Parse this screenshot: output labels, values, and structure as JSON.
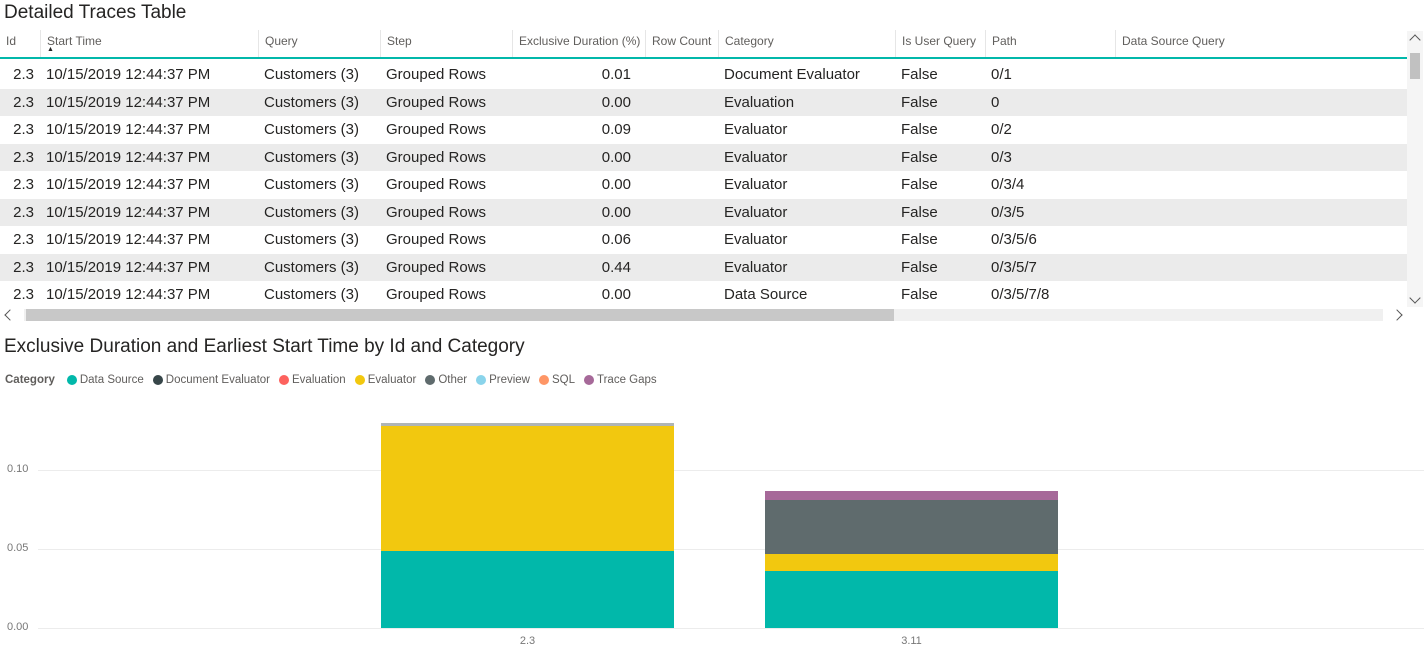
{
  "table": {
    "title": "Detailed Traces Table",
    "sorted_column": "Start Time",
    "sort_direction": "ascending",
    "columns": [
      "Id",
      "Start Time",
      "Query",
      "Step",
      "Exclusive Duration (%)",
      "Row Count",
      "Category",
      "Is User Query",
      "Path",
      "Data Source Query"
    ],
    "rows": [
      [
        "2.3",
        "10/15/2019 12:44:37 PM",
        "Customers (3)",
        "Grouped Rows",
        "0.01",
        "",
        "Document Evaluator",
        "False",
        "0/1",
        ""
      ],
      [
        "2.3",
        "10/15/2019 12:44:37 PM",
        "Customers (3)",
        "Grouped Rows",
        "0.00",
        "",
        "Evaluation",
        "False",
        "0",
        ""
      ],
      [
        "2.3",
        "10/15/2019 12:44:37 PM",
        "Customers (3)",
        "Grouped Rows",
        "0.09",
        "",
        "Evaluator",
        "False",
        "0/2",
        ""
      ],
      [
        "2.3",
        "10/15/2019 12:44:37 PM",
        "Customers (3)",
        "Grouped Rows",
        "0.00",
        "",
        "Evaluator",
        "False",
        "0/3",
        ""
      ],
      [
        "2.3",
        "10/15/2019 12:44:37 PM",
        "Customers (3)",
        "Grouped Rows",
        "0.00",
        "",
        "Evaluator",
        "False",
        "0/3/4",
        ""
      ],
      [
        "2.3",
        "10/15/2019 12:44:37 PM",
        "Customers (3)",
        "Grouped Rows",
        "0.00",
        "",
        "Evaluator",
        "False",
        "0/3/5",
        ""
      ],
      [
        "2.3",
        "10/15/2019 12:44:37 PM",
        "Customers (3)",
        "Grouped Rows",
        "0.06",
        "",
        "Evaluator",
        "False",
        "0/3/5/6",
        ""
      ],
      [
        "2.3",
        "10/15/2019 12:44:37 PM",
        "Customers (3)",
        "Grouped Rows",
        "0.44",
        "",
        "Evaluator",
        "False",
        "0/3/5/7",
        ""
      ],
      [
        "2.3",
        "10/15/2019 12:44:37 PM",
        "Customers (3)",
        "Grouped Rows",
        "0.00",
        "",
        "Data Source",
        "False",
        "0/3/5/7/8",
        ""
      ]
    ]
  },
  "chart": {
    "title": "Exclusive Duration and Earliest Start Time by Id and Category",
    "legend_title": "Category",
    "legend": [
      {
        "label": "Data Source",
        "color": "#01B8AA"
      },
      {
        "label": "Document Evaluator",
        "color": "#374649"
      },
      {
        "label": "Evaluation",
        "color": "#FD625E"
      },
      {
        "label": "Evaluator",
        "color": "#F2C80F"
      },
      {
        "label": "Other",
        "color": "#5F6B6D"
      },
      {
        "label": "Preview",
        "color": "#8AD4EB"
      },
      {
        "label": "SQL",
        "color": "#FE9666"
      },
      {
        "label": "Trace Gaps",
        "color": "#A66999"
      }
    ]
  },
  "chart_data": {
    "type": "bar",
    "stacked": true,
    "title": "Exclusive Duration and Earliest Start Time by Id and Category",
    "categories": [
      "2.3",
      "3.11"
    ],
    "series": [
      {
        "name": "Data Source",
        "color": "#01B8AA",
        "values": [
          0.049,
          0.036
        ]
      },
      {
        "name": "Evaluator",
        "color": "#F2C80F",
        "values": [
          0.079,
          0.011
        ]
      },
      {
        "name": "Other",
        "color": "#5F6B6D",
        "values": [
          0.002,
          0.034
        ]
      },
      {
        "name": "Trace Gaps",
        "color": "#A66999",
        "values": [
          0,
          0.006
        ]
      }
    ],
    "xlabel": "",
    "ylabel": "",
    "ytick_labels": [
      "0.00",
      "0.05",
      "0.10"
    ],
    "ytick_values": [
      0,
      0.05,
      0.1
    ],
    "ylim": [
      0,
      0.13
    ],
    "grid": true,
    "legend_position": "top-left"
  },
  "icons": {
    "sort_ascending": "▲",
    "scroll_up": "chevron-up",
    "scroll_down": "chevron-down",
    "scroll_left": "chevron-left",
    "scroll_right": "chevron-right"
  },
  "colors": {
    "accent": "#01B8AA",
    "header_underline": "#01B8AA",
    "row_alt": "#ebebeb",
    "axis_text": "#777777",
    "gridline": "#ececec"
  }
}
